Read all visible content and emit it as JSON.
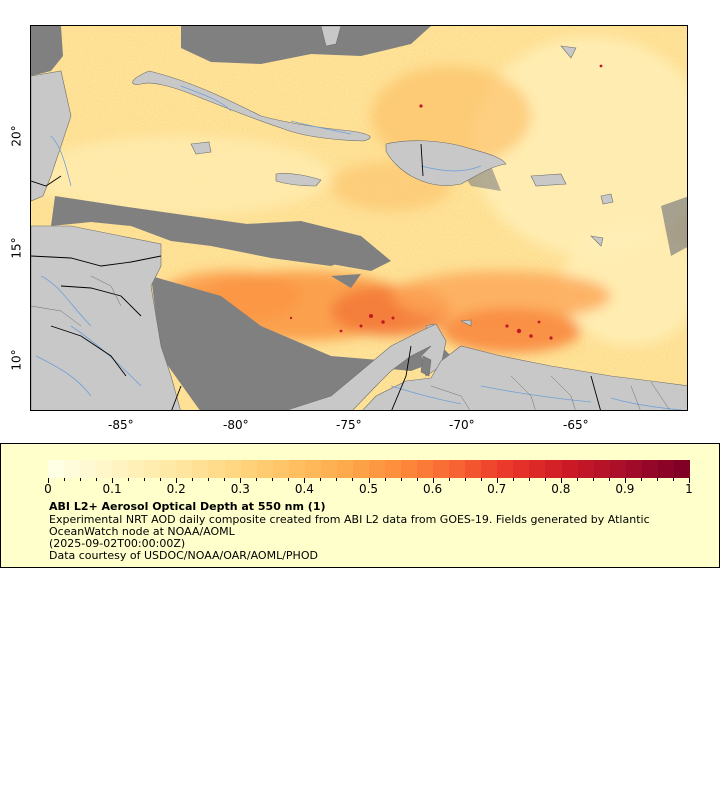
{
  "map": {
    "lat_labels": [
      "20°",
      "15°",
      "10°"
    ],
    "lon_labels": [
      "-85°",
      "-80°",
      "-75°",
      "-70°",
      "-65°"
    ],
    "colors": {
      "land": "#c8c8c8",
      "no_data": "#808080",
      "rivers": "#6fa0d8",
      "borders": "#000000",
      "subdivisions": "#6e6e6e"
    }
  },
  "legend": {
    "colorbar_min": 0,
    "colorbar_max": 1,
    "tick_labels": [
      "0",
      "0.1",
      "0.2",
      "0.3",
      "0.4",
      "0.5",
      "0.6",
      "0.7",
      "0.8",
      "0.9",
      "1"
    ],
    "colorbar_colors": [
      "#ffffe5",
      "#fff5c5",
      "#ffe9a6",
      "#ffd985",
      "#ffc466",
      "#fdac4d",
      "#fd8d3c",
      "#f86532",
      "#e9352a",
      "#cc1a26",
      "#a60d29",
      "#800026"
    ],
    "title": "ABI L2+ Aerosol Optical Depth at 550 nm (1)",
    "description": "Experimental NRT AOD daily composite created from ABI L2 data from GOES-19. Fields generated by Atlantic OceanWatch node at NOAA/AOML",
    "time": "(2025-09-02T00:00:00Z)",
    "credit": "Data courtesy of USDOC/NOAA/OAR/AOML/PHOD"
  }
}
